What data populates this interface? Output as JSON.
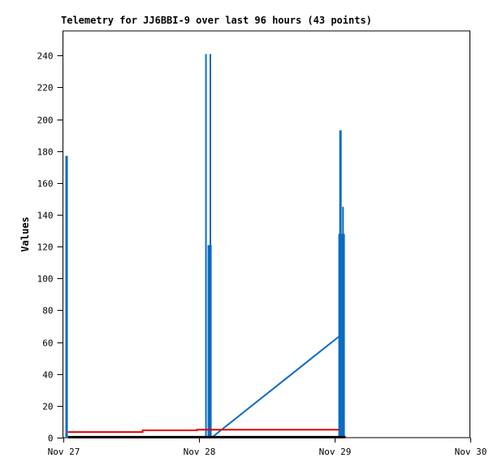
{
  "chart_data": {
    "type": "line",
    "title": "Telemetry for JJ6BBI-9 over last 96 hours (43 points)",
    "ylabel": "Values",
    "xlabel": "",
    "ylim": [
      0,
      255.5
    ],
    "xlim": [
      0,
      72
    ],
    "grid": false,
    "legend": "none",
    "background_color": "#ffffff",
    "border_color": "#000000",
    "yticks": [
      0,
      20,
      40,
      60,
      80,
      100,
      120,
      140,
      160,
      180,
      200,
      220,
      240
    ],
    "xticks": [
      {
        "label": "Nov 27",
        "hour": 0
      },
      {
        "label": "Nov 28",
        "hour": 24
      },
      {
        "label": "Nov 29",
        "hour": 48
      },
      {
        "label": "Nov 30",
        "hour": 72
      }
    ],
    "series": [
      {
        "name": "blue-telemetry-spikes",
        "type": "vlines",
        "color": "#0b6bc4",
        "points": [
          {
            "x": 0.65,
            "y0": 0,
            "y1": 177,
            "w": 3
          },
          {
            "x": 25.3,
            "y0": 0,
            "y1": 241,
            "w": 2
          },
          {
            "x": 26.08,
            "y0": 0,
            "y1": 241,
            "w": 2
          },
          {
            "x": 25.95,
            "y0": 0,
            "y1": 121,
            "w": 5
          },
          {
            "x": 49.1,
            "y0": 0,
            "y1": 193,
            "w": 3
          },
          {
            "x": 49.55,
            "y0": 128,
            "y1": 145,
            "w": 2
          },
          {
            "x": 49.3,
            "y0": 0,
            "y1": 128,
            "w": 8
          }
        ]
      },
      {
        "name": "blue-rising-channel",
        "type": "polyline",
        "color": "#0b6bc4",
        "w": 2,
        "points": [
          [
            26.3,
            0
          ],
          [
            49.0,
            64
          ]
        ]
      },
      {
        "name": "red-channel",
        "type": "polyline",
        "color": "#e60000",
        "w": 2,
        "points": [
          [
            0.9,
            3.5
          ],
          [
            14.1,
            3.5
          ],
          [
            14.1,
            4.6
          ],
          [
            23.7,
            4.6
          ],
          [
            23.7,
            5.0
          ],
          [
            48.9,
            5.0
          ]
        ]
      },
      {
        "name": "black-channel",
        "type": "polyline",
        "color": "#000000",
        "w": 3,
        "points": [
          [
            0.9,
            0.3
          ],
          [
            50.0,
            0.3
          ]
        ]
      }
    ]
  }
}
